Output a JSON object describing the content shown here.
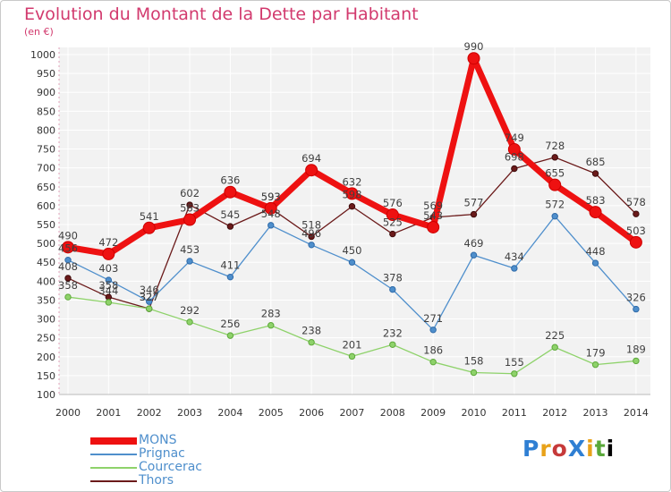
{
  "title": "Evolution du Montant de la Dette par Habitant",
  "subtitle": "(en €)",
  "logo": "ProXiti",
  "chart_data": {
    "type": "line",
    "x": [
      "2000",
      "2001",
      "2002",
      "2003",
      "2004",
      "2005",
      "2006",
      "2007",
      "2008",
      "2009",
      "2010",
      "2011",
      "2012",
      "2013",
      "2014"
    ],
    "ylim": [
      100,
      1000
    ],
    "yticks": [
      100,
      150,
      200,
      250,
      300,
      350,
      400,
      450,
      500,
      550,
      600,
      650,
      700,
      750,
      800,
      850,
      900,
      950,
      1000
    ],
    "grid": true,
    "legend_position": "bottom-left",
    "series": [
      {
        "name": "Thors",
        "color": "#6b1a1a",
        "values": [
          408,
          358,
          327,
          602,
          545,
          593,
          518,
          598,
          525,
          569,
          577,
          698,
          728,
          685,
          578
        ],
        "labels": [
          "408",
          "358",
          "327",
          "602",
          "545",
          "593",
          "518",
          "598",
          "525",
          "569",
          "577",
          "698",
          "728",
          "685",
          "578"
        ]
      },
      {
        "name": "Courcerac",
        "color": "#8ed26a",
        "values": [
          358,
          344,
          327,
          292,
          256,
          283,
          238,
          201,
          232,
          186,
          158,
          155,
          225,
          179,
          189
        ],
        "labels": [
          "358",
          "344",
          "327",
          "292",
          "256",
          "283",
          "238",
          "201",
          "232",
          "186",
          "158",
          "155",
          "225",
          "179",
          "189"
        ]
      },
      {
        "name": "Prignac",
        "color": "#4f8fcc",
        "values": [
          456,
          403,
          346,
          453,
          411,
          548,
          496,
          450,
          378,
          271,
          469,
          434,
          572,
          448,
          326
        ],
        "labels": [
          "456",
          "403",
          "346",
          "453",
          "411",
          "548",
          "496",
          "450",
          "378",
          "271",
          "469",
          "434",
          "572",
          "448",
          "326"
        ]
      },
      {
        "name": "MONS",
        "color": "#ee1111",
        "values": [
          490,
          472,
          541,
          563,
          636,
          593,
          694,
          632,
          576,
          543,
          990,
          749,
          655,
          583,
          503
        ],
        "labels": [
          "490",
          "472",
          "541",
          "563",
          "636",
          "593",
          "694",
          "632",
          "576",
          "543",
          "990",
          "749",
          "655",
          "583",
          "503"
        ]
      }
    ]
  },
  "legend": [
    {
      "name": "MONS",
      "color": "#ee1111",
      "text_color": "#4f8fcc"
    },
    {
      "name": "Prignac",
      "color": "#4f8fcc",
      "text_color": "#4f8fcc"
    },
    {
      "name": "Courcerac",
      "color": "#8ed26a",
      "text_color": "#4f8fcc"
    },
    {
      "name": "Thors",
      "color": "#6b1a1a",
      "text_color": "#4f8fcc"
    }
  ]
}
